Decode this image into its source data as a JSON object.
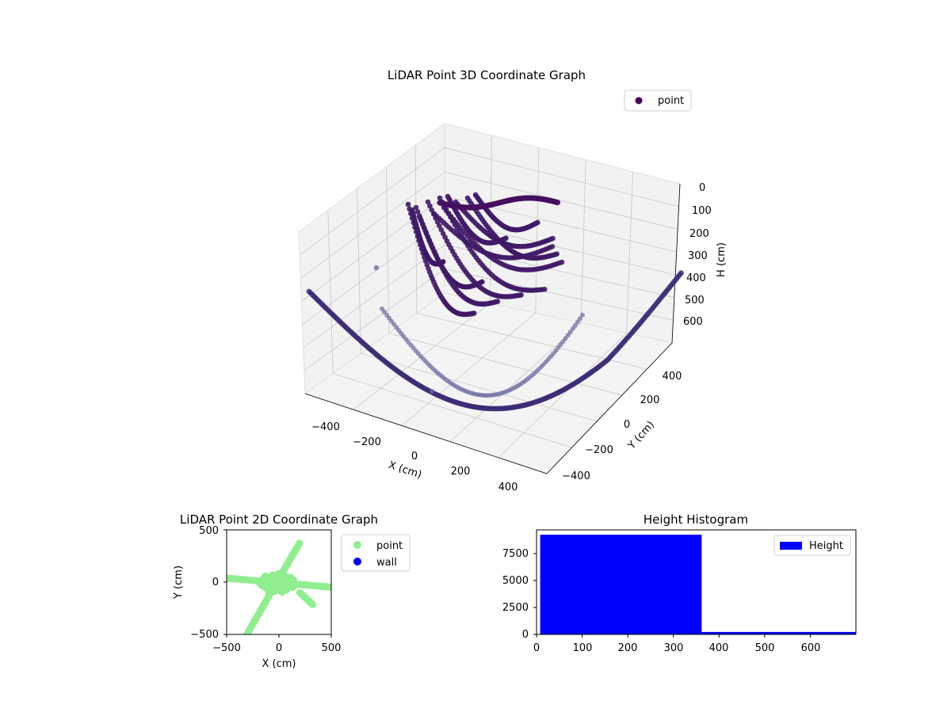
{
  "colors": {
    "point3d": "#3b2a73",
    "point3d_light": "#6a6aa0",
    "pane": "#f2f2f2",
    "grid": "#c8c8c8",
    "point2d": "#90ee90",
    "wall": "#0000ff",
    "hist": "#0000ff"
  },
  "chart_data": [
    {
      "type": "scatter",
      "title": "LiDAR Point 3D Coordinate Graph",
      "xlabel": "X (cm)",
      "ylabel": "Y (cm)",
      "zlabel": "H (cm)",
      "xticks": [
        "−400",
        "−200",
        "0",
        "200",
        "400"
      ],
      "yticks": [
        "−400",
        "−200",
        "0",
        "200",
        "400"
      ],
      "zticks": [
        "0",
        "100",
        "200",
        "300",
        "400",
        "500",
        "600"
      ],
      "xlim": [
        -500,
        500
      ],
      "ylim": [
        -500,
        500
      ],
      "zlim": [
        0,
        650
      ],
      "grid": true,
      "legend": {
        "placement": "top-right",
        "entries": [
          "point"
        ]
      }
    },
    {
      "type": "scatter",
      "title": "LiDAR Point 2D Coordinate Graph",
      "xlabel": "X (cm)",
      "ylabel": "Y (cm)",
      "xlim": [
        -500,
        500
      ],
      "ylim": [
        -500,
        500
      ],
      "xticks": [
        "−500",
        "0",
        "500"
      ],
      "yticks": [
        "−500",
        "0",
        "500"
      ],
      "legend": {
        "placement": "outside-right",
        "entries": [
          "point",
          "wall"
        ]
      }
    },
    {
      "type": "bar",
      "title": "Height Histogram",
      "xlim": [
        0,
        700
      ],
      "ylim": [
        0,
        9700
      ],
      "xticks": [
        "0",
        "100",
        "200",
        "300",
        "400",
        "500",
        "600"
      ],
      "yticks": [
        "0",
        "2500",
        "5000",
        "7500"
      ],
      "bins": [
        {
          "start": 8,
          "end": 362,
          "count": 9250
        },
        {
          "start": 362,
          "end": 700,
          "count": 230
        }
      ],
      "legend": {
        "placement": "top-right",
        "entries": [
          "Height"
        ]
      }
    }
  ]
}
